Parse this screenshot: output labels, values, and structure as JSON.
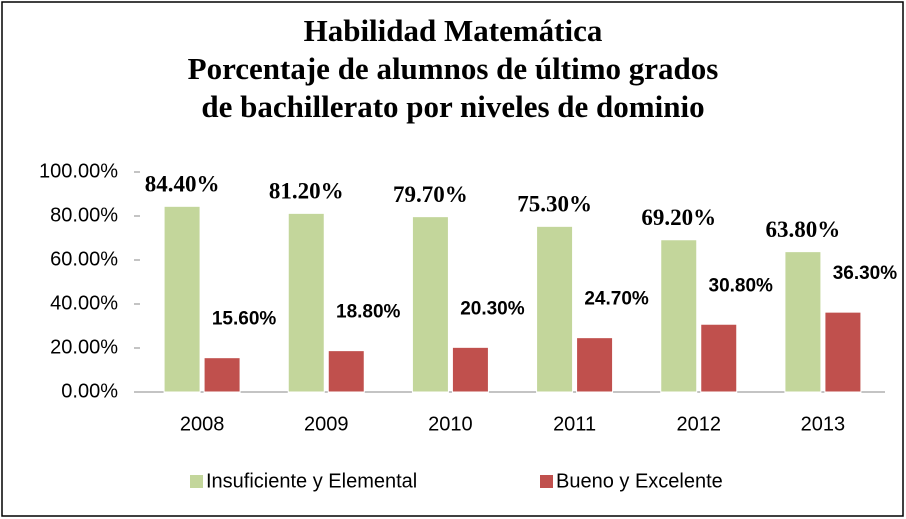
{
  "chart_data": {
    "type": "bar",
    "title": [
      "Habilidad Matemática",
      "Porcentaje de alumnos de último grados",
      "de bachillerato por niveles de dominio"
    ],
    "categories": [
      "2008",
      "2009",
      "2010",
      "2011",
      "2012",
      "2013"
    ],
    "series": [
      {
        "name": "Insuficiente y Elemental",
        "color": "#c3d69b",
        "values": [
          84.4,
          81.2,
          79.7,
          75.3,
          69.2,
          63.8
        ],
        "value_labels": [
          "84.40%",
          "81.20%",
          "79.70%",
          "75.30%",
          "69.20%",
          "63.80%"
        ]
      },
      {
        "name": "Bueno y Excelente",
        "color": "#c0504d",
        "values": [
          15.6,
          18.8,
          20.3,
          24.7,
          30.8,
          36.3
        ],
        "value_labels": [
          "15.60%",
          "18.80%",
          "20.30%",
          "24.70%",
          "30.80%",
          "36.30%"
        ]
      }
    ],
    "ylim": [
      0,
      100
    ],
    "yticks": [
      {
        "value": 0,
        "label": "0.00%"
      },
      {
        "value": 20,
        "label": "20.00%"
      },
      {
        "value": 40,
        "label": "40.00%"
      },
      {
        "value": 60,
        "label": "60.00%"
      },
      {
        "value": 80,
        "label": "80.00%"
      },
      {
        "value": 100,
        "label": "100.00%"
      }
    ],
    "legend": "bottom"
  }
}
